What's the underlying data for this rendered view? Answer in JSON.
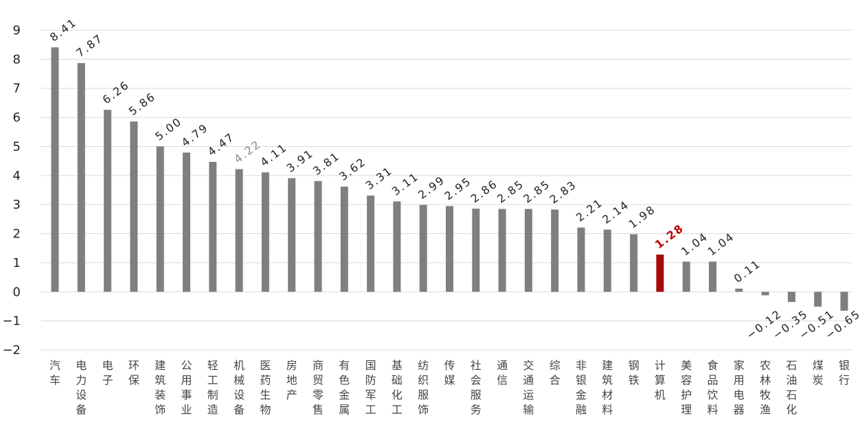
{
  "chart_data": {
    "type": "bar",
    "categories": [
      "汽车",
      "电力设备",
      "电子",
      "环保",
      "建筑装饰",
      "公用事业",
      "轻工制造",
      "机械设备",
      "医药生物",
      "房地产",
      "商贸零售",
      "有色金属",
      "国防军工",
      "基础化工",
      "纺织服饰",
      "传媒",
      "社会服务",
      "通信",
      "交通运输",
      "综合",
      "非银金融",
      "建筑材料",
      "钢铁",
      "计算机",
      "美容护理",
      "食品饮料",
      "家用电器",
      "农林牧渔",
      "石油石化",
      "煤炭",
      "银行"
    ],
    "values": [
      8.41,
      7.87,
      6.26,
      5.86,
      5.0,
      4.79,
      4.47,
      4.22,
      4.11,
      3.91,
      3.81,
      3.62,
      3.31,
      3.11,
      2.99,
      2.95,
      2.86,
      2.85,
      2.85,
      2.83,
      2.21,
      2.14,
      1.98,
      1.28,
      1.04,
      1.04,
      0.11,
      -0.12,
      -0.35,
      -0.51,
      -0.65
    ],
    "value_labels": [
      "8.41",
      "7.87",
      "6.26",
      "5.86",
      "5.00",
      "4.79",
      "4.47",
      "4.22",
      "4.11",
      "3.91",
      "3.81",
      "3.62",
      "3.31",
      "3.11",
      "2.99",
      "2.95",
      "2.86",
      "2.85",
      "2.85",
      "2.83",
      "2.21",
      "2.14",
      "1.98",
      "1.28",
      "1.04",
      "1.04",
      "0.11",
      "−0.12",
      "−0.35",
      "−0.51",
      "−0.65"
    ],
    "y_ticks": [
      "9",
      "8",
      "7",
      "6",
      "5",
      "4",
      "3",
      "2",
      "1",
      "0",
      "−1",
      "−2"
    ],
    "ylim": [
      -2,
      9
    ],
    "grid": true,
    "title": "",
    "xlabel": "",
    "ylabel": "",
    "colors": {
      "bar": "#7f7f7f",
      "highlight_bar": "#a50a0a",
      "highlight_label": "#c00000",
      "muted_label": "#8c8c8c",
      "label": "#222222",
      "grid": "#d9d9d9"
    },
    "highlight_category": "计算机",
    "muted_category": "机械设备"
  }
}
